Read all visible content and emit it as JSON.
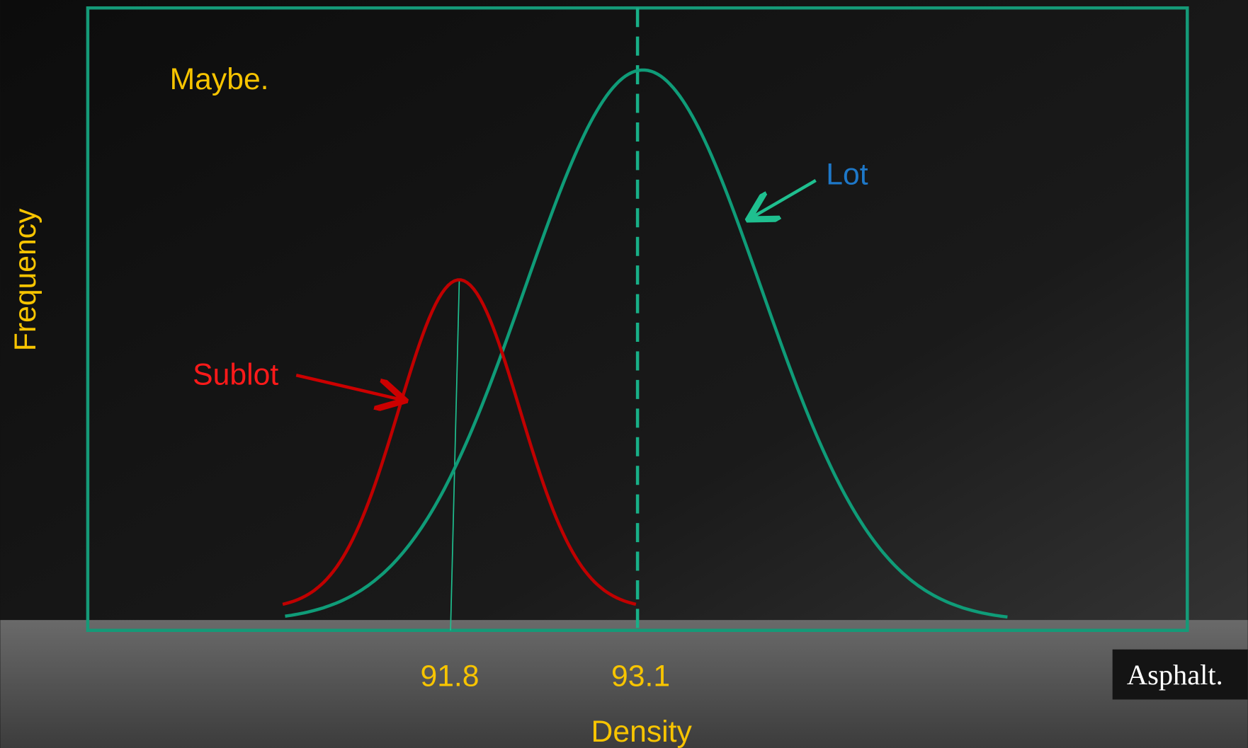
{
  "slide": {
    "note": "Maybe.",
    "y_axis_label": "Frequency",
    "x_axis_label": "Density",
    "markers": [
      "91.8",
      "93.1"
    ],
    "curve_labels": {
      "sublot": "Sublot",
      "lot": "Lot"
    },
    "brand": "Asphalt."
  }
}
